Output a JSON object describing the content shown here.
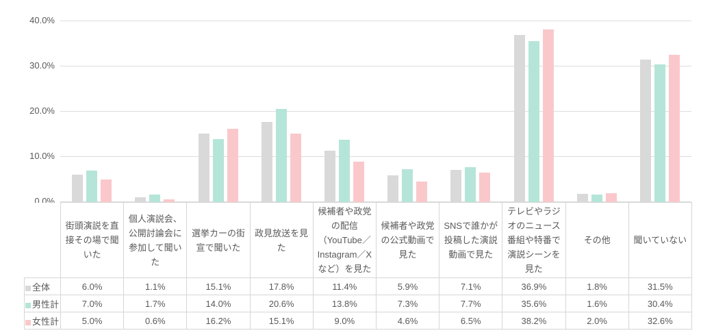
{
  "chart_data": {
    "type": "bar",
    "title": "",
    "xlabel": "",
    "ylabel": "",
    "ylim": [
      0,
      40
    ],
    "ytick_labels": [
      "0.0%",
      "10.0%",
      "20.0%",
      "30.0%",
      "40.0%"
    ],
    "ytick_values": [
      0,
      10,
      20,
      30,
      40
    ],
    "grid": true,
    "value_suffix": "%",
    "value_decimals": 1,
    "legend_position": "table-row-headers",
    "categories": [
      "街頭演説を直接その場で聞いた",
      "個人演説会、公開討論会に参加して聞いた",
      "選挙カーの街宣で聞いた",
      "政見放送を見た",
      "候補者や政党の配信（YouTube／Instagram／Xなど）を見た",
      "候補者や政党の公式動画で見た",
      "SNSで誰かが投稿した演説動画で見た",
      "テレビやラジオのニュース番組や特番で演説シーンを見た",
      "その他",
      "聞いていない"
    ],
    "series": [
      {
        "name": "全体",
        "color": "#d9d9d9",
        "values": [
          6.0,
          1.1,
          15.1,
          17.8,
          11.4,
          5.9,
          7.1,
          36.9,
          1.8,
          31.5
        ]
      },
      {
        "name": "男性計",
        "color": "#b5e5d8",
        "values": [
          7.0,
          1.7,
          14.0,
          20.6,
          13.8,
          7.3,
          7.7,
          35.6,
          1.6,
          30.4
        ]
      },
      {
        "name": "女性計",
        "color": "#fac8cb",
        "values": [
          5.0,
          0.6,
          16.2,
          15.1,
          9.0,
          4.6,
          6.5,
          38.2,
          2.0,
          32.6
        ]
      }
    ]
  },
  "colors": {
    "gridline": "#dcdcdc",
    "table_border": "#d6d6d6",
    "text": "#595959",
    "background": "#ffffff"
  }
}
